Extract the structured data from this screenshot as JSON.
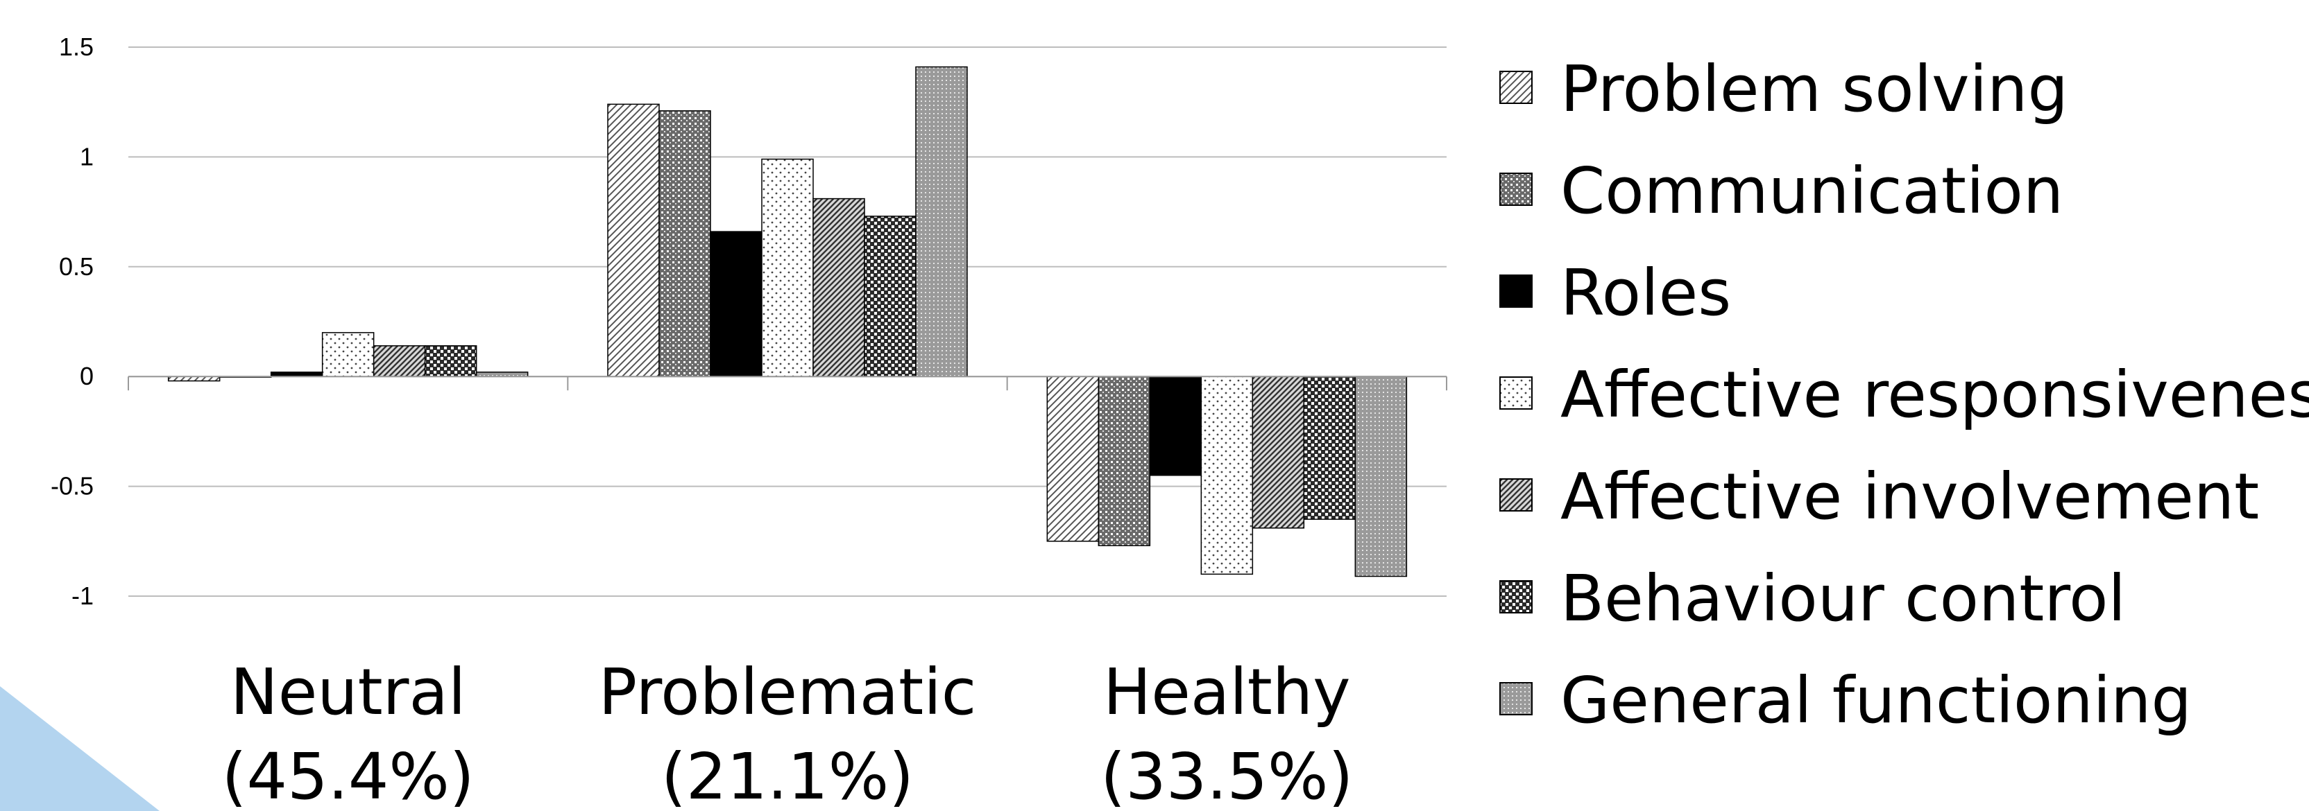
{
  "chart_data": {
    "type": "bar",
    "categories": [
      "Neutral\n(45.4%)",
      "Problematic\n(21.1%)",
      "Healthy\n(33.5%)"
    ],
    "category_lines": [
      [
        "Neutral",
        "(45.4%)"
      ],
      [
        "Problematic",
        "(21.1%)"
      ],
      [
        "Healthy",
        "(33.5%)"
      ]
    ],
    "series": [
      {
        "name": "Problem solving",
        "values": [
          -0.02,
          1.24,
          -0.75
        ],
        "pattern": "diag-light"
      },
      {
        "name": "Communication",
        "values": [
          0.0,
          1.21,
          -0.77
        ],
        "pattern": "dots-dense"
      },
      {
        "name": "Roles",
        "values": [
          0.02,
          0.66,
          -0.45
        ],
        "pattern": "solid"
      },
      {
        "name": "Affective responsiveness",
        "values": [
          0.2,
          0.99,
          -0.9
        ],
        "pattern": "dots-sparse"
      },
      {
        "name": "Affective involvement",
        "values": [
          0.14,
          0.81,
          -0.69
        ],
        "pattern": "diag-dense"
      },
      {
        "name": "Behaviour control",
        "values": [
          0.14,
          0.73,
          -0.65
        ],
        "pattern": "checker"
      },
      {
        "name": "General functioning",
        "values": [
          0.02,
          1.41,
          -0.91
        ],
        "pattern": "grid-fine"
      }
    ],
    "ylim": [
      -1,
      1.5
    ],
    "yticks": [
      "-1",
      "-0.5",
      "0",
      "0.5",
      "1",
      "1.5"
    ],
    "ytick_values": [
      -1,
      -0.5,
      0,
      0.5,
      1,
      1.5
    ],
    "grid": true,
    "legend_position": "right",
    "title": "",
    "xlabel": "",
    "ylabel": ""
  }
}
